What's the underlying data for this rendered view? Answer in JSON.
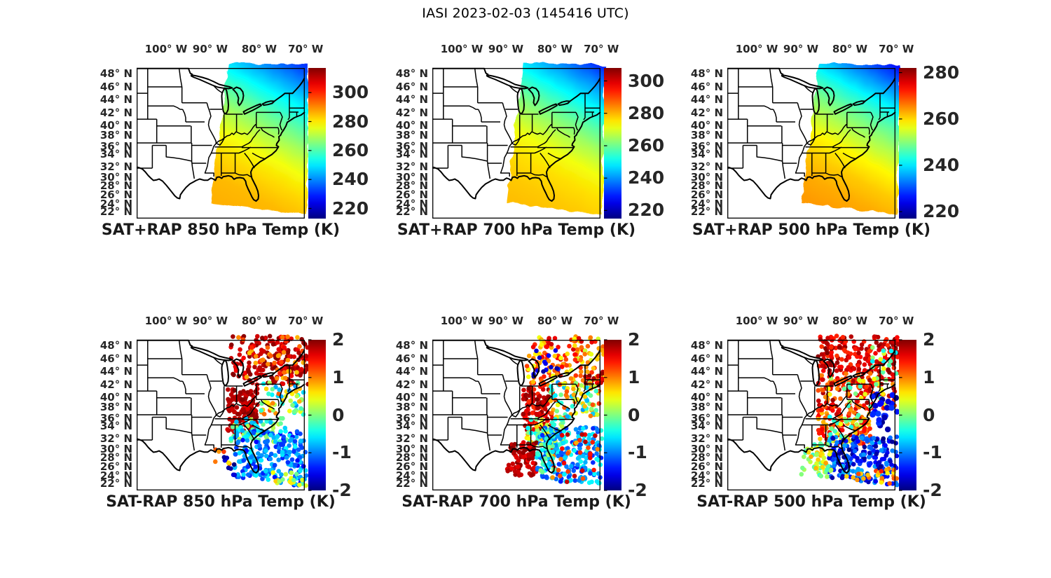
{
  "page_title": "IASI 2023-02-03 (145416 UTC)",
  "axis": {
    "lon_tick_labels": [
      "100° W",
      "90° W",
      "80° W",
      "70° W"
    ],
    "lat_tick_labels": [
      "48° N",
      "46° N",
      "44° N",
      "42° N",
      "40° N",
      "38° N",
      "36° N",
      "34° N",
      "32° N",
      "30° N",
      "28° N",
      "26° N",
      "24° N",
      "22° N"
    ]
  },
  "chart_data": [
    {
      "type": "map-gradient",
      "title": "SAT+RAP 850 hPa Temp (K)",
      "colormap": "jet",
      "units": "K",
      "colorbar": {
        "range": [
          213,
          317
        ],
        "ticks": [
          300,
          280,
          260,
          240,
          220
        ]
      },
      "field_profile_K": [
        [
          0,
          231
        ],
        [
          0.12,
          241
        ],
        [
          0.25,
          252
        ],
        [
          0.38,
          262
        ],
        [
          0.5,
          270
        ],
        [
          0.62,
          277
        ],
        [
          0.75,
          282
        ],
        [
          0.88,
          285
        ],
        [
          1,
          286
        ]
      ],
      "description": "IASI satellite+RAP 850 hPa temperature swath over eastern US: ~231 K northeast decreasing-gradient to ~286 K over Gulf/SE Atlantic."
    },
    {
      "type": "map-gradient",
      "title": "SAT+RAP 700 hPa Temp (K)",
      "colormap": "jet",
      "units": "K",
      "colorbar": {
        "range": [
          215,
          308
        ],
        "ticks": [
          300,
          280,
          260,
          240,
          220
        ]
      },
      "field_profile_K": [
        [
          0,
          230
        ],
        [
          0.12,
          240
        ],
        [
          0.25,
          250
        ],
        [
          0.38,
          259
        ],
        [
          0.5,
          266
        ],
        [
          0.62,
          272
        ],
        [
          0.75,
          276
        ],
        [
          0.88,
          278
        ],
        [
          1,
          279
        ]
      ],
      "description": "700 hPa temperature swath: ~230 K north to ~279 K south."
    },
    {
      "type": "map-gradient",
      "title": "SAT+RAP 500 hPa Temp (K)",
      "colormap": "jet",
      "units": "K",
      "colorbar": {
        "range": [
          217,
          282
        ],
        "ticks": [
          280,
          260,
          240,
          220
        ]
      },
      "field_profile_K": [
        [
          0,
          226
        ],
        [
          0.12,
          233
        ],
        [
          0.25,
          241
        ],
        [
          0.38,
          248
        ],
        [
          0.5,
          253
        ],
        [
          0.62,
          258
        ],
        [
          0.75,
          261
        ],
        [
          0.88,
          263
        ],
        [
          1,
          264
        ]
      ],
      "description": "500 hPa temperature swath: ~226 K north to ~264 K south."
    },
    {
      "type": "map-scatter",
      "title": "SAT-RAP 850 hPa Temp (K)",
      "colormap": "jet",
      "units": "K",
      "colorbar": {
        "range": [
          -2,
          2
        ],
        "ticks": [
          2,
          1,
          0,
          -1,
          -2
        ]
      },
      "scatter_zones": [
        [
          0.56,
          1.02,
          -0.03,
          0.3,
          1.5,
          2.0,
          170
        ],
        [
          0.6,
          1.0,
          -0.02,
          0.26,
          0.7,
          1.6,
          45
        ],
        [
          0.54,
          0.72,
          0.32,
          0.62,
          1.6,
          2.0,
          150
        ],
        [
          0.74,
          1.0,
          0.28,
          0.5,
          -1.0,
          1.2,
          60
        ],
        [
          0.56,
          0.9,
          0.52,
          0.68,
          -0.8,
          0.3,
          65
        ],
        [
          0.58,
          1.01,
          0.6,
          0.98,
          -1.5,
          -0.5,
          270
        ],
        [
          0.75,
          1.01,
          0.88,
          0.99,
          -0.3,
          0.7,
          25
        ],
        [
          0.46,
          0.58,
          0.72,
          0.86,
          0.6,
          1.3,
          8
        ],
        [
          0.5,
          0.6,
          0.78,
          0.9,
          -2.0,
          -1.6,
          8
        ]
      ],
      "description": "SAT minus RAP 850 hPa differences: +1.5..+2 K Great Lakes/NE and Ohio Valley, -0.5..-1.5 K Southeast/offshore Atlantic and Florida."
    },
    {
      "type": "map-scatter",
      "title": "SAT-RAP 700 hPa Temp (K)",
      "colormap": "jet",
      "units": "K",
      "colorbar": {
        "range": [
          -2,
          2
        ],
        "ticks": [
          2,
          1,
          0,
          -1,
          -2
        ]
      },
      "scatter_zones": [
        [
          0.56,
          1.02,
          -0.03,
          0.3,
          0.3,
          1.7,
          150
        ],
        [
          0.6,
          0.75,
          0.05,
          0.25,
          -2.0,
          -1.3,
          14
        ],
        [
          0.9,
          1.02,
          0.15,
          0.32,
          1.5,
          2.0,
          18
        ],
        [
          0.54,
          0.72,
          0.3,
          0.6,
          1.3,
          2.0,
          115
        ],
        [
          0.7,
          1.0,
          0.28,
          0.52,
          -0.9,
          1.3,
          90
        ],
        [
          0.56,
          0.78,
          0.52,
          0.7,
          -0.6,
          0.8,
          70
        ],
        [
          0.44,
          0.62,
          0.68,
          0.93,
          1.5,
          2.0,
          100
        ],
        [
          0.62,
          1.01,
          0.58,
          0.98,
          -1.4,
          -0.3,
          240
        ],
        [
          0.7,
          1.0,
          0.6,
          0.95,
          0.8,
          1.8,
          35
        ],
        [
          0.62,
          0.73,
          0.68,
          0.88,
          -0.8,
          0.3,
          30
        ]
      ],
      "description": "SAT minus RAP 700 hPa differences: mixed ±1 K north, +1.5..2 K Ohio Valley and Gulf coast cluster, -0.5..-1.5 K offshore Southeast."
    },
    {
      "type": "map-scatter",
      "title": "SAT-RAP 500 hPa Temp (K)",
      "colormap": "jet",
      "units": "K",
      "colorbar": {
        "range": [
          -2,
          2
        ],
        "ticks": [
          2,
          1,
          0,
          -1,
          -2
        ]
      },
      "scatter_zones": [
        [
          0.54,
          1.02,
          -0.03,
          0.22,
          1.3,
          2.0,
          190
        ],
        [
          0.8,
          1.02,
          0.05,
          0.25,
          -0.6,
          0.6,
          15
        ],
        [
          0.54,
          1.0,
          0.22,
          0.46,
          0.9,
          1.9,
          150
        ],
        [
          0.6,
          0.95,
          0.25,
          0.45,
          -0.4,
          0.6,
          25
        ],
        [
          0.54,
          0.85,
          0.46,
          0.7,
          0.7,
          1.8,
          120
        ],
        [
          0.6,
          0.8,
          0.5,
          0.68,
          -0.5,
          0.5,
          25
        ],
        [
          0.86,
          1.01,
          0.36,
          0.6,
          -2.0,
          -1.2,
          26,
          4.2
        ],
        [
          0.6,
          1.01,
          0.64,
          0.99,
          -2.0,
          -0.8,
          270
        ],
        [
          0.7,
          1.01,
          0.85,
          0.99,
          0.5,
          1.5,
          30
        ],
        [
          0.44,
          0.62,
          0.68,
          0.96,
          -0.3,
          0.9,
          70
        ]
      ],
      "description": "SAT minus RAP 500 hPa differences: +1..2 K across the north and mid swath, -1..-2 K offshore mid-Atlantic dots and dense -1..-2 K south/offshore Gulf-Atlantic."
    }
  ]
}
